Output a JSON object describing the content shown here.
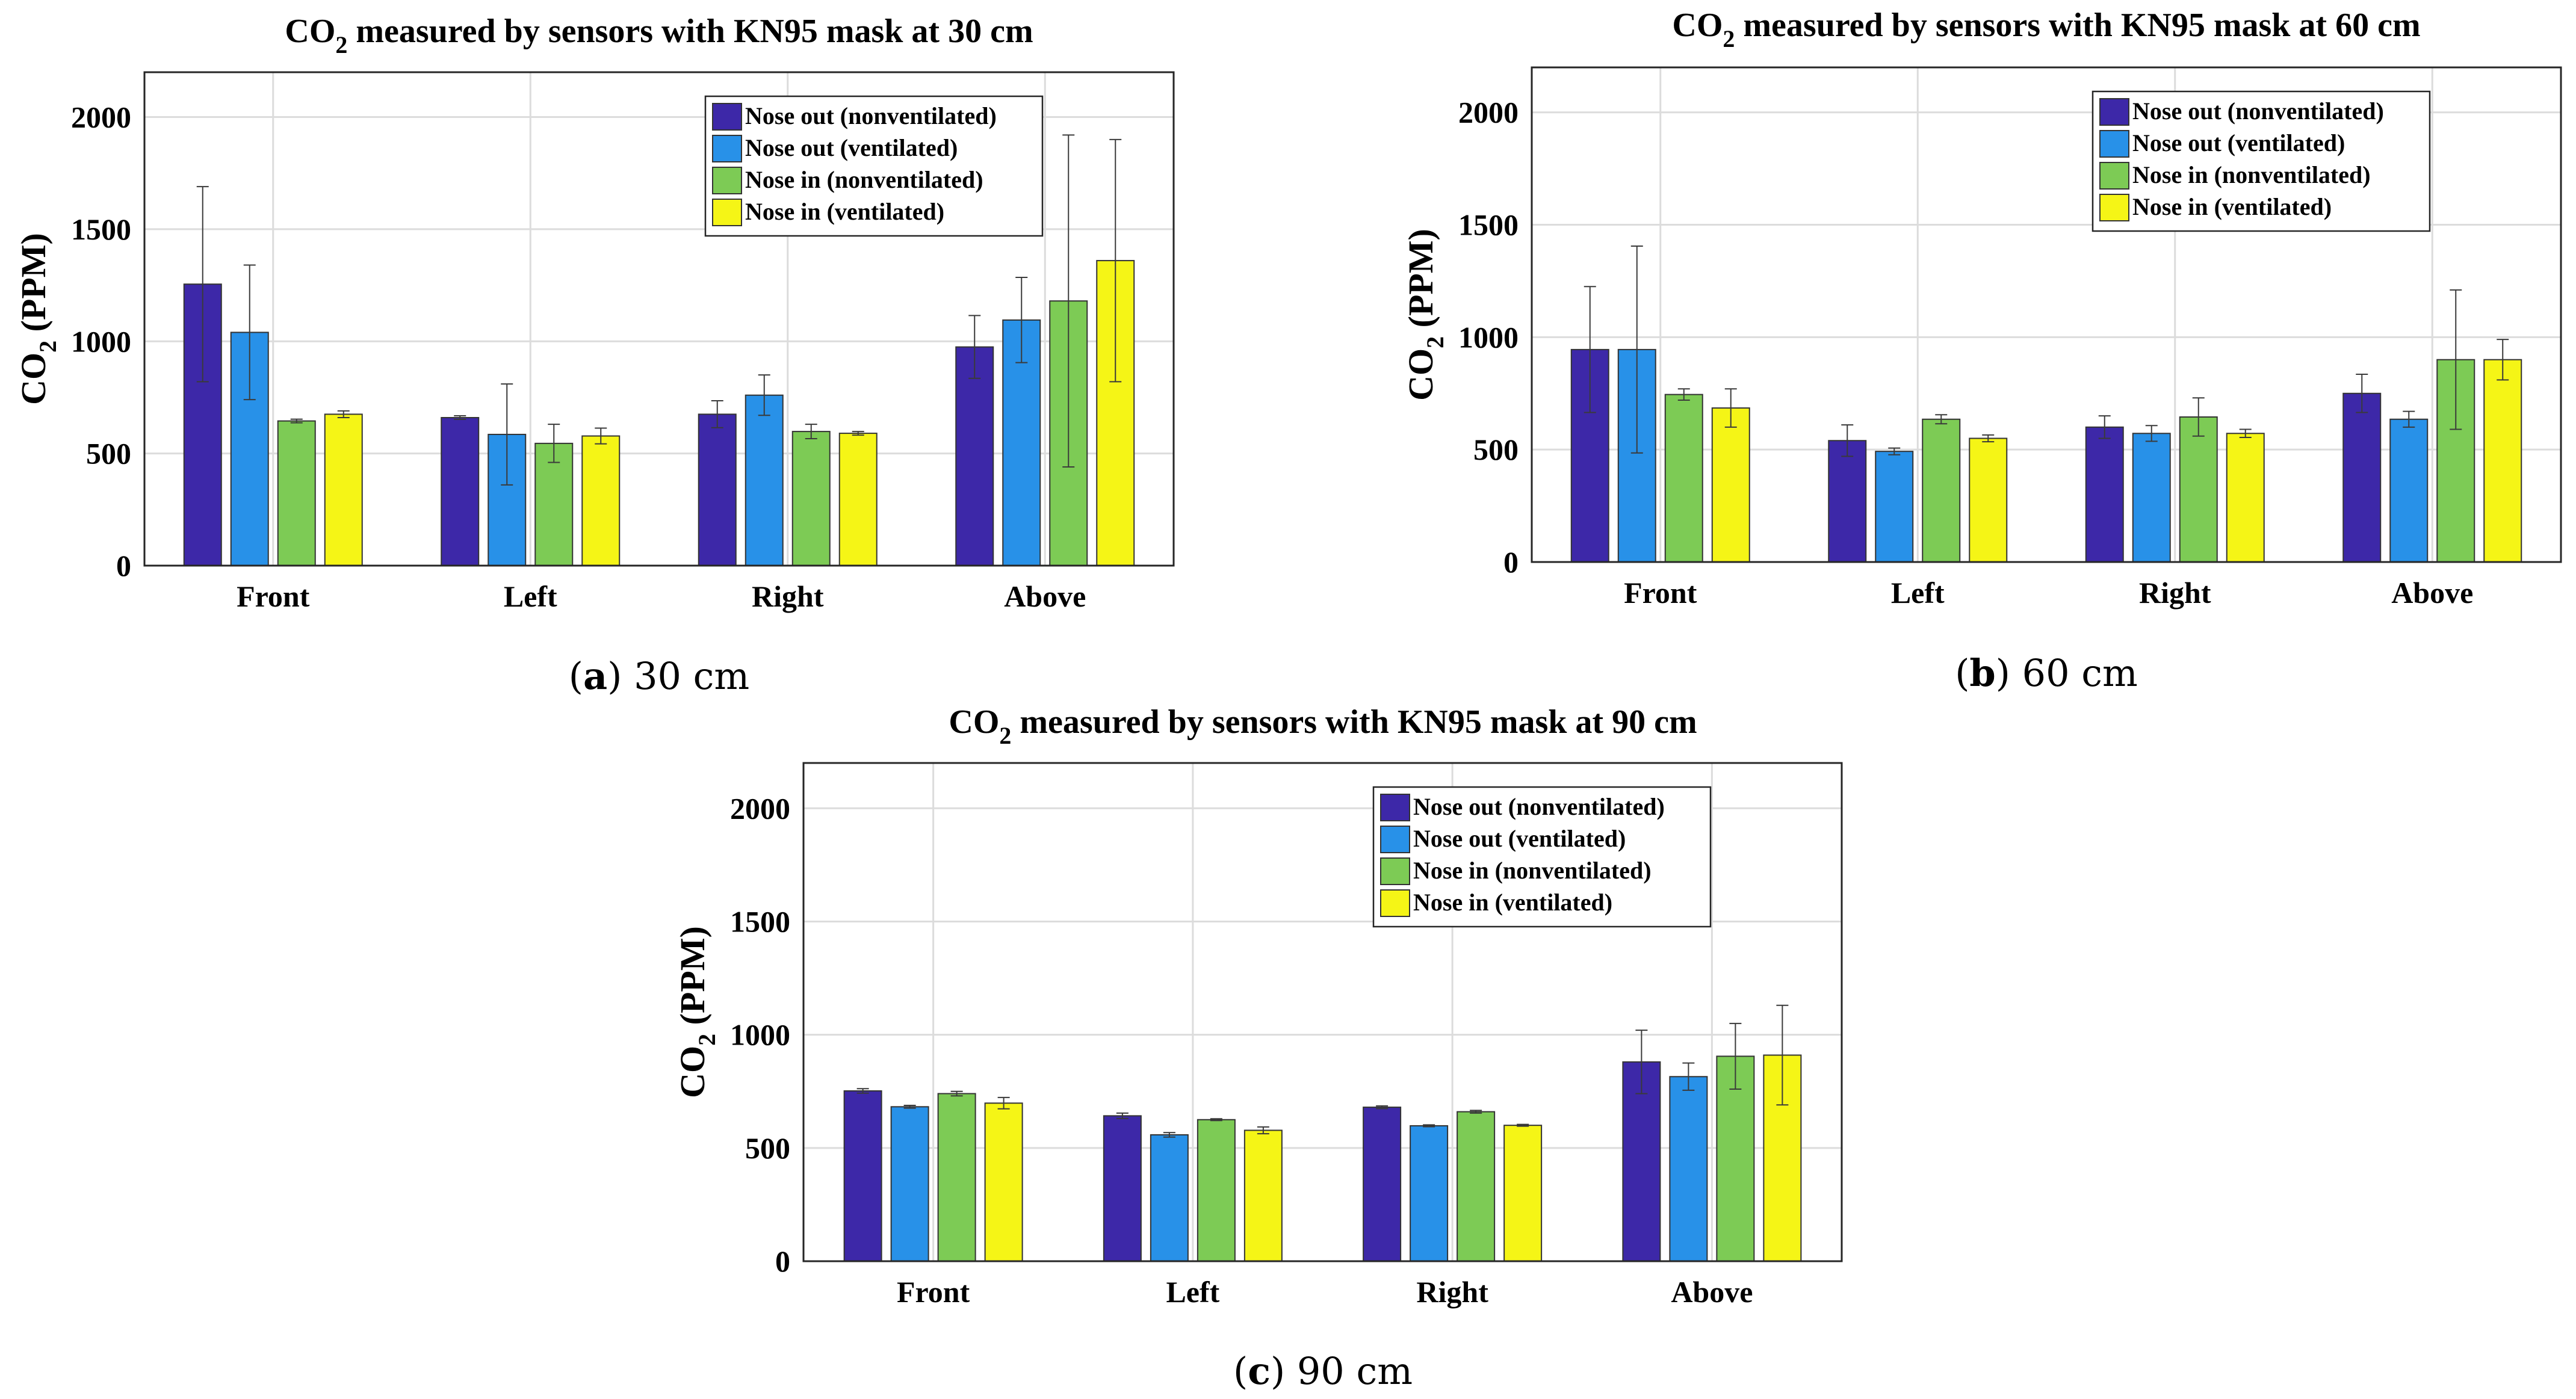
{
  "chart_data": [
    {
      "id": "a",
      "type": "bar",
      "title_prefix": "CO",
      "title_sub": "2",
      "title_rest": " measured by sensors with KN95 mask at 30 cm",
      "ylabel_prefix": "CO",
      "ylabel_sub": "2",
      "ylabel_rest": " (PPM)",
      "categories": [
        "Front",
        "Left",
        "Right",
        "Above"
      ],
      "ylim": [
        0,
        2200
      ],
      "yticks": [
        0,
        500,
        1000,
        1500,
        2000
      ],
      "grid": true,
      "legend_position": "top-right",
      "series": [
        {
          "name": "Nose out (nonventilated)",
          "color": "#3D28A8",
          "values": [
            1255,
            660,
            675,
            975
          ],
          "errors": [
            435,
            8,
            60,
            140
          ]
        },
        {
          "name": "Nose out (ventilated)",
          "color": "#2891E8",
          "values": [
            1040,
            585,
            760,
            1095
          ],
          "errors": [
            300,
            225,
            90,
            190
          ]
        },
        {
          "name": "Nose in (nonventilated)",
          "color": "#7DCB55",
          "values": [
            645,
            545,
            598,
            1180
          ],
          "errors": [
            8,
            85,
            32,
            740
          ]
        },
        {
          "name": "Nose in (ventilated)",
          "color": "#F5F516",
          "values": [
            675,
            578,
            590,
            1360
          ],
          "errors": [
            15,
            35,
            8,
            540
          ]
        }
      ],
      "caption_letter": "a",
      "caption_text": " 30 cm"
    },
    {
      "id": "b",
      "type": "bar",
      "title_prefix": "CO",
      "title_sub": "2",
      "title_rest": " measured by sensors with KN95 mask at 60 cm",
      "ylabel_prefix": "CO",
      "ylabel_sub": "2",
      "ylabel_rest": " (PPM)",
      "categories": [
        "Front",
        "Left",
        "Right",
        "Above"
      ],
      "ylim": [
        0,
        2200
      ],
      "yticks": [
        0,
        500,
        1000,
        1500,
        2000
      ],
      "grid": true,
      "legend_position": "top-right",
      "series": [
        {
          "name": "Nose out (nonventilated)",
          "color": "#3D28A8",
          "values": [
            945,
            540,
            600,
            750
          ],
          "errors": [
            280,
            70,
            50,
            85
          ]
        },
        {
          "name": "Nose out (ventilated)",
          "color": "#2891E8",
          "values": [
            945,
            492,
            572,
            635
          ],
          "errors": [
            460,
            15,
            35,
            35
          ]
        },
        {
          "name": "Nose in (nonventilated)",
          "color": "#7DCB55",
          "values": [
            745,
            635,
            645,
            900
          ],
          "errors": [
            25,
            20,
            85,
            310
          ]
        },
        {
          "name": "Nose in (ventilated)",
          "color": "#F5F516",
          "values": [
            685,
            550,
            572,
            900
          ],
          "errors": [
            85,
            15,
            18,
            90
          ]
        }
      ],
      "caption_letter": "b",
      "caption_text": " 60 cm"
    },
    {
      "id": "c",
      "type": "bar",
      "title_prefix": "CO",
      "title_sub": "2",
      "title_rest": " measured by sensors with KN95 mask at 90 cm",
      "ylabel_prefix": "CO",
      "ylabel_sub": "2",
      "ylabel_rest": " (PPM)",
      "categories": [
        "Front",
        "Left",
        "Right",
        "Above"
      ],
      "ylim": [
        0,
        2200
      ],
      "yticks": [
        0,
        500,
        1000,
        1500,
        2000
      ],
      "grid": true,
      "legend_position": "top-right",
      "series": [
        {
          "name": "Nose out (nonventilated)",
          "color": "#3D28A8",
          "values": [
            752,
            642,
            680,
            880
          ],
          "errors": [
            10,
            12,
            6,
            140
          ]
        },
        {
          "name": "Nose out (ventilated)",
          "color": "#2891E8",
          "values": [
            682,
            558,
            598,
            815
          ],
          "errors": [
            6,
            10,
            4,
            60
          ]
        },
        {
          "name": "Nose in (nonventilated)",
          "color": "#7DCB55",
          "values": [
            740,
            625,
            660,
            905
          ],
          "errors": [
            10,
            4,
            6,
            145
          ]
        },
        {
          "name": "Nose in (ventilated)",
          "color": "#F5F516",
          "values": [
            698,
            578,
            600,
            910
          ],
          "errors": [
            25,
            15,
            4,
            220
          ]
        }
      ],
      "caption_letter": "c",
      "caption_text": " 90 cm"
    }
  ]
}
